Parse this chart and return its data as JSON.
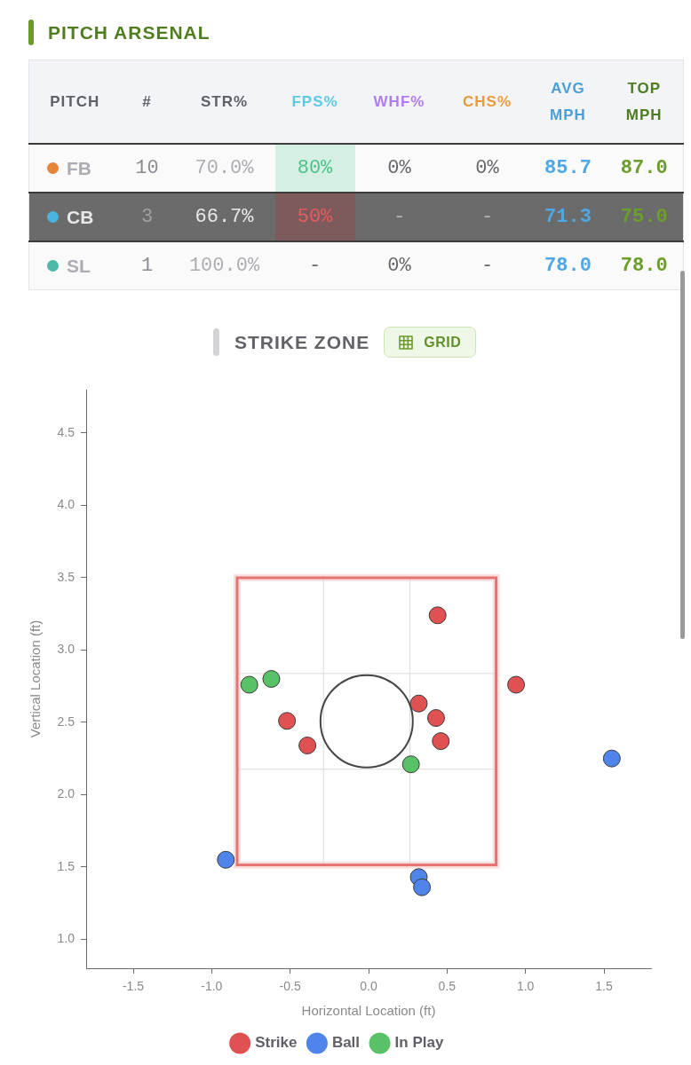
{
  "chart_data": [
    {
      "type": "other",
      "title": "PITCH ARSENAL",
      "ylabel": "PITCH",
      "categories": [
        "#",
        "STR%",
        "FPS%",
        "WHF%",
        "CHS%",
        "AVG MPH",
        "TOP MPH"
      ],
      "y_categories": [
        "FB",
        "CB",
        "SL"
      ],
      "cell_labels": [
        [
          "10",
          "70.0%",
          "80%",
          "0%",
          "0%",
          "85.7",
          "87.0"
        ],
        [
          "3",
          "66.7%",
          "50%",
          "-",
          "-",
          "71.3",
          "75.0"
        ],
        [
          "1",
          "100.0%",
          "-",
          "0%",
          "-",
          "78.0",
          "78.0"
        ]
      ]
    },
    {
      "type": "scatter",
      "title": "STRIKE ZONE",
      "annotations": [
        "GRID"
      ],
      "xlabel": "Horizontal Location (ft)",
      "ylabel": "Vertical Location (ft)",
      "xlim": [
        -1.8,
        1.8
      ],
      "xticks": [
        -1.5,
        {
          "value": -1,
          "label": "-1.0"
        },
        -0.5,
        {
          "value": 0,
          "label": "0.0"
        },
        0.5,
        {
          "value": 1,
          "label": "1.0"
        },
        1.5
      ],
      "ylim": [
        0.8,
        4.8
      ],
      "yticks": [
        {
          "value": 1,
          "label": "1.0"
        },
        1.5,
        {
          "value": 2,
          "label": "2.0"
        },
        2.5,
        {
          "value": 3,
          "label": "3.0"
        },
        3.5,
        {
          "value": 4,
          "label": "4.0"
        },
        4.5
      ],
      "legend": "bottom",
      "marker": "circle",
      "series": [
        {
          "name": "Strike",
          "color": "#e05252",
          "x": [
            0.44,
            0.94,
            0.32,
            0.43,
            0.46,
            -0.52,
            -0.39
          ],
          "values": [
            3.24,
            2.76,
            2.63,
            2.53,
            2.37,
            2.51,
            2.34
          ]
        },
        {
          "name": "Ball",
          "color": "#4f85eb",
          "x": [
            1.55,
            -0.91,
            0.32,
            0.34
          ],
          "values": [
            2.25,
            1.55,
            1.43,
            1.36
          ]
        },
        {
          "name": "In Play",
          "color": "#5ac266",
          "x": [
            -0.76,
            -0.62,
            0.27
          ],
          "values": [
            2.76,
            2.8,
            2.21
          ]
        }
      ]
    }
  ]
}
